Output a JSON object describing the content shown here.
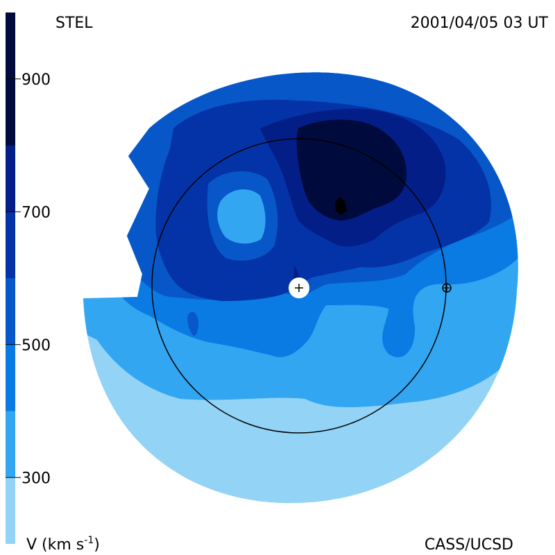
{
  "header": {
    "left": "STEL",
    "right": "2001/04/05 03 UT"
  },
  "footer": {
    "left": "V (km s",
    "left_sup": "-1",
    "left_end": ")",
    "right": "CASS/UCSD"
  },
  "chart_data": {
    "type": "heatmap",
    "quantity": "V (km s-1)",
    "colorbar": {
      "range": [
        200,
        1000
      ],
      "ticks": [
        "900",
        "700",
        "500",
        "300"
      ],
      "tick_values": [
        900,
        700,
        500,
        300
      ],
      "levels": [
        {
          "from": 200,
          "to": 300,
          "color": "#93d3f5"
        },
        {
          "from": 300,
          "to": 400,
          "color": "#33a6f2"
        },
        {
          "from": 400,
          "to": 500,
          "color": "#0b7be4"
        },
        {
          "from": 500,
          "to": 600,
          "color": "#0857c8"
        },
        {
          "from": 600,
          "to": 700,
          "color": "#0433a8"
        },
        {
          "from": 700,
          "to": 800,
          "color": "#031e86"
        },
        {
          "from": 800,
          "to": 1000,
          "color": "#010a3c"
        }
      ]
    },
    "markers": [
      "sun",
      "earth"
    ]
  },
  "icons": {
    "sun": "sun-plus-icon",
    "earth": "earth-crossed-circle-icon"
  }
}
